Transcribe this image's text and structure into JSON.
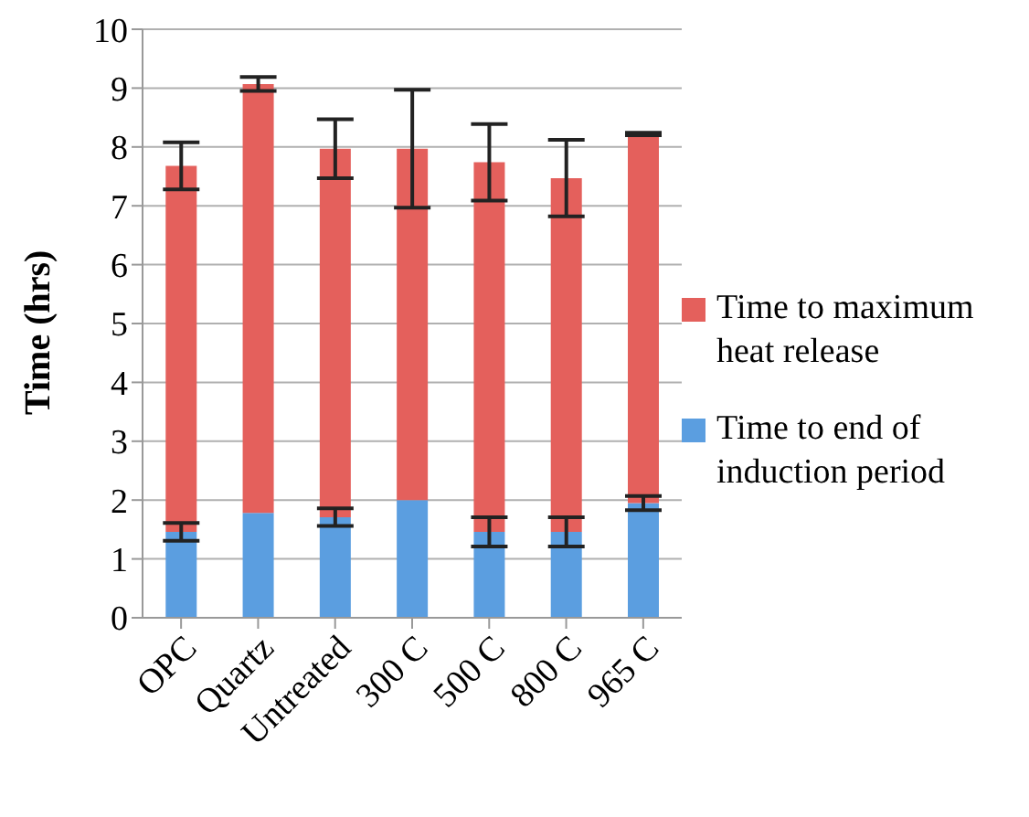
{
  "chart_data": {
    "type": "bar",
    "stacked": true,
    "ylabel": "Time (hrs)",
    "categories": [
      "OPC",
      "Quartz",
      "Untreated",
      "300 C",
      "500 C",
      "800 C",
      "965 C"
    ],
    "series": [
      {
        "name": "Time to end of induction period",
        "color": "#5b9ee0",
        "values": [
          1.46,
          1.78,
          1.71,
          2.0,
          1.46,
          1.46,
          1.95
        ],
        "errors": [
          0.15,
          null,
          0.15,
          null,
          0.25,
          0.25,
          0.12
        ]
      },
      {
        "name": "Time to maximum heat release",
        "color": "#e4605c",
        "values": [
          6.22,
          7.29,
          6.26,
          5.97,
          6.28,
          6.01,
          6.27
        ],
        "errors": [
          0.4,
          0.12,
          0.5,
          1.0,
          0.65,
          0.65,
          0.02
        ]
      }
    ],
    "ylim": [
      0,
      10
    ],
    "yticks": [
      0,
      1,
      2,
      3,
      4,
      5,
      6,
      7,
      8,
      9,
      10
    ],
    "grid": "y",
    "legend": "right"
  }
}
